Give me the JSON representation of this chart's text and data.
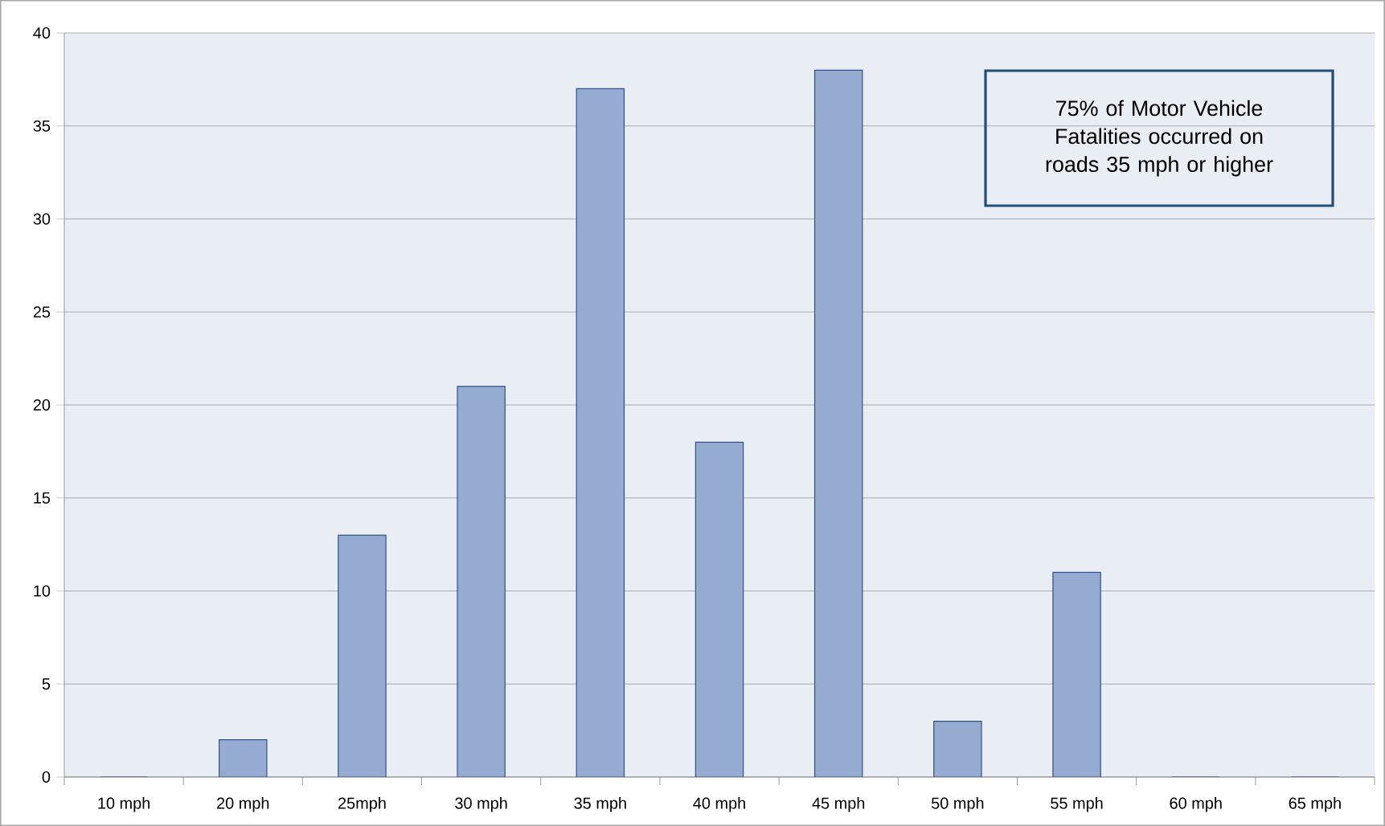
{
  "chart_data": {
    "type": "bar",
    "categories": [
      "10 mph",
      "20 mph",
      "25mph",
      "30 mph",
      "35 mph",
      "40 mph",
      "45 mph",
      "50 mph",
      "55 mph",
      "60 mph",
      "65 mph"
    ],
    "values": [
      0,
      2,
      13,
      21,
      37,
      18,
      38,
      3,
      11,
      0,
      0
    ],
    "color": "#95abd2",
    "ylim": [
      0,
      40
    ],
    "yticks": [
      0,
      5,
      10,
      15,
      20,
      25,
      30,
      35,
      40
    ],
    "grid": "y",
    "annotations": [
      "75% of Motor Vehicle Fatalities occurred on roads 35 mph or higher"
    ]
  }
}
